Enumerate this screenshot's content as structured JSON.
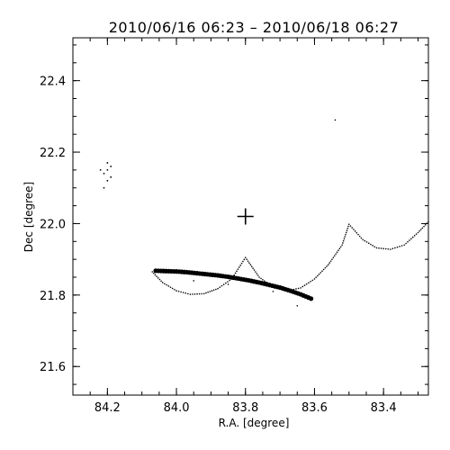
{
  "chart_data": {
    "type": "scatter",
    "title": "2010/06/16 06:23 – 2010/06/18 06:27",
    "xlabel": "R.A. [degree]",
    "ylabel": "Dec [degree]",
    "xlim": [
      84.3,
      83.27
    ],
    "ylim": [
      21.52,
      22.52
    ],
    "x_ticks": [
      84.2,
      84.0,
      83.8,
      83.6,
      83.4
    ],
    "x_tick_labels": [
      "84.2",
      "84.0",
      "83.8",
      "83.6",
      "83.4"
    ],
    "y_ticks": [
      21.6,
      21.8,
      22.0,
      22.2,
      22.4
    ],
    "y_tick_labels": [
      "21.6",
      "21.8",
      "22.0",
      "22.2",
      "22.4"
    ],
    "x_axis_reversed": true,
    "grid": false,
    "target_marker": {
      "x": 83.8,
      "y": 22.02,
      "symbol": "plus"
    },
    "series": [
      {
        "values": [
          {
            "x": 84.06,
            "y": 21.868
          },
          {
            "x": 84.03,
            "y": 21.867
          },
          {
            "x": 84.0,
            "y": 21.866
          },
          {
            "x": 83.97,
            "y": 21.864
          },
          {
            "x": 83.94,
            "y": 21.861
          },
          {
            "x": 83.91,
            "y": 21.858
          },
          {
            "x": 83.88,
            "y": 21.855
          },
          {
            "x": 83.85,
            "y": 21.851
          },
          {
            "x": 83.82,
            "y": 21.846
          },
          {
            "x": 83.79,
            "y": 21.841
          },
          {
            "x": 83.76,
            "y": 21.835
          },
          {
            "x": 83.73,
            "y": 21.828
          },
          {
            "x": 83.7,
            "y": 21.821
          },
          {
            "x": 83.67,
            "y": 21.812
          },
          {
            "x": 83.64,
            "y": 21.802
          },
          {
            "x": 83.61,
            "y": 21.79
          }
        ]
      },
      {
        "values": [
          {
            "x": 84.07,
            "y": 21.865
          },
          {
            "x": 84.04,
            "y": 21.835
          },
          {
            "x": 84.0,
            "y": 21.812
          },
          {
            "x": 83.96,
            "y": 21.802
          },
          {
            "x": 83.92,
            "y": 21.804
          },
          {
            "x": 83.88,
            "y": 21.818
          },
          {
            "x": 83.84,
            "y": 21.845
          },
          {
            "x": 83.8,
            "y": 21.905
          },
          {
            "x": 83.76,
            "y": 21.85
          },
          {
            "x": 83.72,
            "y": 21.822
          },
          {
            "x": 83.68,
            "y": 21.812
          },
          {
            "x": 83.64,
            "y": 21.82
          },
          {
            "x": 83.6,
            "y": 21.845
          },
          {
            "x": 83.56,
            "y": 21.885
          },
          {
            "x": 83.52,
            "y": 21.94
          },
          {
            "x": 83.5,
            "y": 21.998
          },
          {
            "x": 83.46,
            "y": 21.955
          },
          {
            "x": 83.42,
            "y": 21.932
          },
          {
            "x": 83.38,
            "y": 21.928
          },
          {
            "x": 83.34,
            "y": 21.94
          },
          {
            "x": 83.3,
            "y": 21.975
          },
          {
            "x": 83.27,
            "y": 22.005
          }
        ]
      },
      {
        "values": [
          {
            "x": 84.2,
            "y": 22.17
          },
          {
            "x": 84.19,
            "y": 22.16
          },
          {
            "x": 84.21,
            "y": 22.14
          },
          {
            "x": 84.2,
            "y": 22.12
          },
          {
            "x": 84.21,
            "y": 22.1
          },
          {
            "x": 84.22,
            "y": 22.15
          },
          {
            "x": 84.19,
            "y": 22.13
          },
          {
            "x": 84.2,
            "y": 22.15
          }
        ]
      },
      {
        "values": [
          {
            "x": 83.54,
            "y": 22.29
          },
          {
            "x": 83.95,
            "y": 21.84
          },
          {
            "x": 83.85,
            "y": 21.83
          },
          {
            "x": 83.72,
            "y": 21.81
          },
          {
            "x": 83.65,
            "y": 21.77
          }
        ]
      }
    ]
  }
}
